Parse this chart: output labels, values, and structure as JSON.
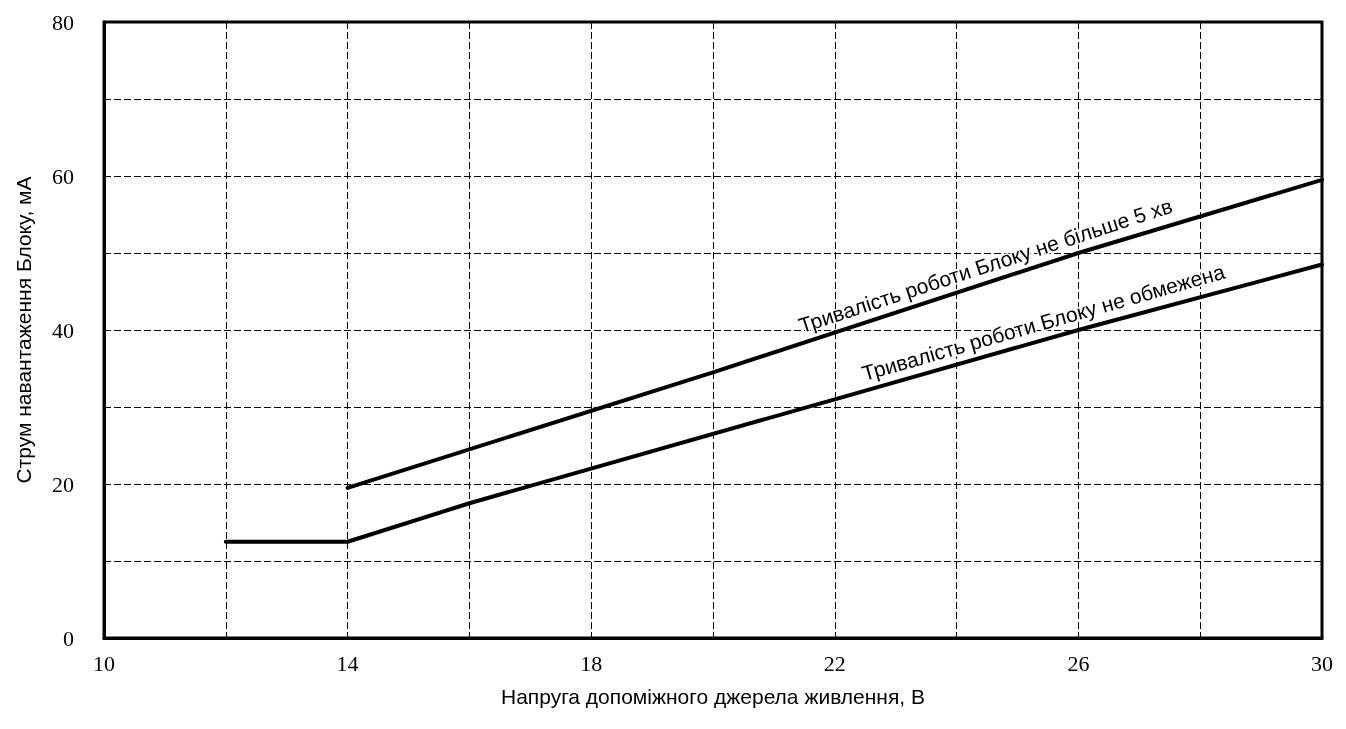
{
  "chart_data": {
    "type": "line",
    "xlabel": "Напруга допоміжного джерела живлення, В",
    "ylabel": "Струм навантаження Блоку, мА",
    "series": [
      {
        "name": "Тривалість роботи Блоку не більше 5 хв",
        "color": "#000000",
        "x": [
          14,
          20,
          26,
          30
        ],
        "values": [
          19.5,
          34.5,
          50,
          59.5
        ]
      },
      {
        "name": "Тривалість роботи Блоку не обмежена",
        "color": "#000000",
        "x": [
          12,
          14,
          16,
          22,
          26,
          30
        ],
        "values": [
          12.5,
          12.5,
          17.5,
          31,
          40,
          48.5
        ]
      }
    ],
    "xlim": [
      10,
      30
    ],
    "ylim": [
      0,
      80
    ],
    "xticks": [
      10,
      {
        "value": 12,
        "label": null
      },
      14,
      {
        "value": 16,
        "label": null
      },
      18,
      {
        "value": 20,
        "label": null
      },
      22,
      {
        "value": 24,
        "label": null
      },
      26,
      {
        "value": 28,
        "label": null
      },
      30
    ],
    "yticks": [
      0,
      {
        "value": 10,
        "label": null
      },
      20,
      {
        "value": 30,
        "label": null
      },
      40,
      {
        "value": 50,
        "label": null
      },
      60,
      {
        "value": 70,
        "label": null
      },
      80
    ],
    "grid": true,
    "marker": "none",
    "line_style": "solid"
  }
}
